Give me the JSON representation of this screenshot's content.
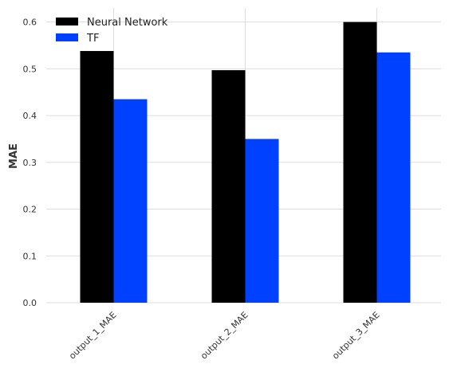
{
  "chart_data": {
    "type": "bar",
    "categories": [
      "output_1_MAE",
      "output_2_MAE",
      "output_3_MAE"
    ],
    "series": [
      {
        "name": "Neural Network",
        "color": "#000000",
        "values": [
          0.538,
          0.497,
          0.6
        ]
      },
      {
        "name": "TF",
        "color": "#0040ff",
        "values": [
          0.435,
          0.35,
          0.535
        ]
      }
    ],
    "ylabel": "MAE",
    "xlabel": "",
    "ylim": [
      0,
      0.63
    ],
    "yticks": [
      0.0,
      0.1,
      0.2,
      0.3,
      0.4,
      0.5,
      0.6
    ],
    "ytick_labels": [
      "0.0",
      "0.1",
      "0.2",
      "0.3",
      "0.4",
      "0.5",
      "0.6"
    ],
    "grid": true,
    "legend_position": "top-left"
  }
}
